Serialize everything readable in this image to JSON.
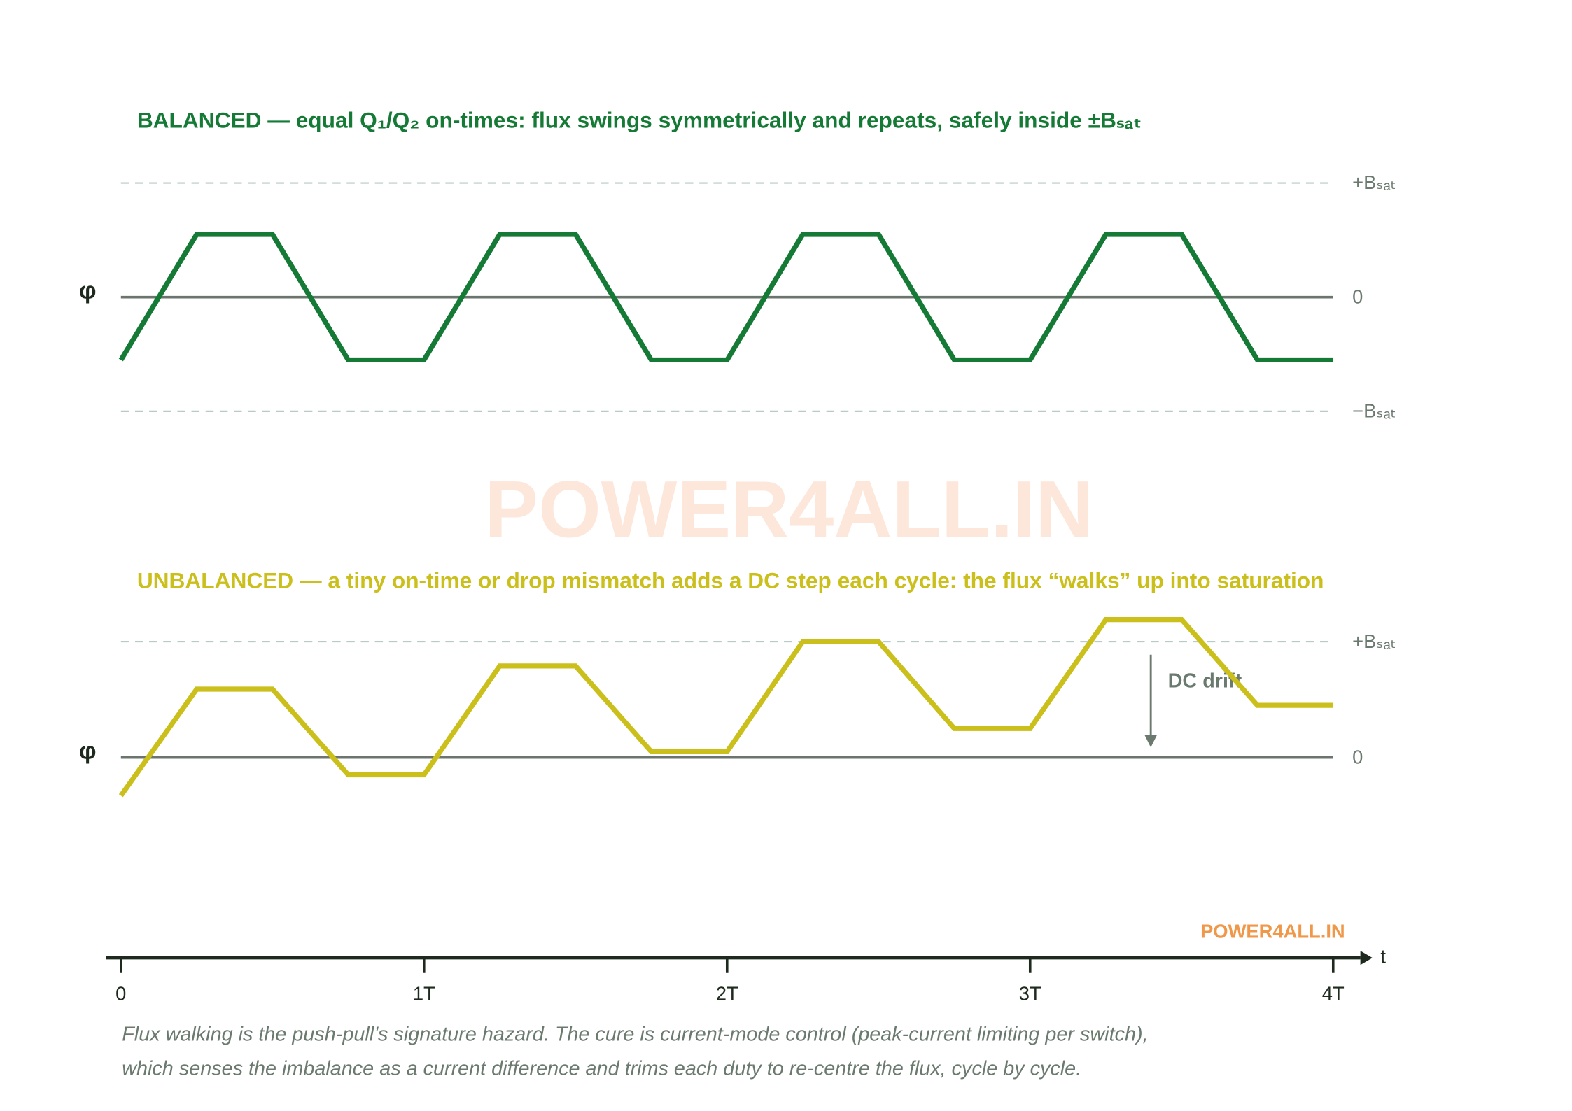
{
  "chart_data": [
    {
      "type": "line",
      "title": "BALANCED — equal Q₁/Q₂ on-times: flux swings symmetrically and repeats, safely inside ±Bₛₐₜ",
      "ylabel": "φ",
      "xlim": [
        0,
        4
      ],
      "ylim": [
        -1.2,
        1.2
      ],
      "yticks": [
        {
          "value": 1,
          "label": "+Bₛₐₜ"
        },
        0,
        {
          "value": -1,
          "label": "−Bₛₐₜ"
        }
      ],
      "x": [
        0,
        0.25,
        0.5,
        0.75,
        1,
        1.25,
        1.5,
        1.75,
        2,
        2.25,
        2.5,
        2.75,
        3,
        3.25,
        3.5,
        3.75,
        4
      ],
      "series": [
        {
          "color": "#157a35",
          "values": [
            -0.55,
            0.55,
            0.55,
            -0.55,
            -0.55,
            0.55,
            0.55,
            -0.55,
            -0.55,
            0.55,
            0.55,
            -0.55,
            -0.55,
            0.55,
            0.55,
            -0.55,
            -0.55
          ]
        }
      ]
    },
    {
      "type": "line",
      "title": "UNBALANCED — a tiny on-time or drop mismatch adds a DC step each cycle: the flux “walks” up into saturation",
      "ylabel": "φ",
      "xlabel": "t",
      "xlim": [
        0,
        4
      ],
      "ylim": [
        -1.0,
        1.4
      ],
      "yticks": [
        {
          "value": 1,
          "label": "+Bₛₐₜ"
        },
        0
      ],
      "xticks": [
        0,
        {
          "value": 1,
          "label": "1T"
        },
        {
          "value": 2,
          "label": "2T"
        },
        {
          "value": 3,
          "label": "3T"
        },
        {
          "value": 4,
          "label": "4T"
        }
      ],
      "annotation": "DC drift",
      "x": [
        0,
        0.25,
        0.5,
        0.75,
        1,
        1.25,
        1.5,
        1.75,
        2,
        2.25,
        2.5,
        2.75,
        3,
        3.25,
        3.5,
        3.75,
        4
      ],
      "series": [
        {
          "color": "#cbbf1c",
          "values": [
            -0.33,
            0.59,
            0.59,
            -0.15,
            -0.15,
            0.79,
            0.79,
            0.05,
            0.05,
            1.0,
            1.0,
            0.25,
            0.25,
            1.19,
            1.19,
            0.45,
            0.45
          ]
        }
      ]
    }
  ],
  "watermark": "POWER4ALL.IN",
  "brand": "POWER4ALL.IN",
  "caption": [
    "Flux walking is the push-pull’s signature hazard. The cure is current-mode control (peak-current limiting per switch),",
    "which senses the imbalance as a current difference and trims each duty to re-centre the flux, cycle by cycle."
  ]
}
